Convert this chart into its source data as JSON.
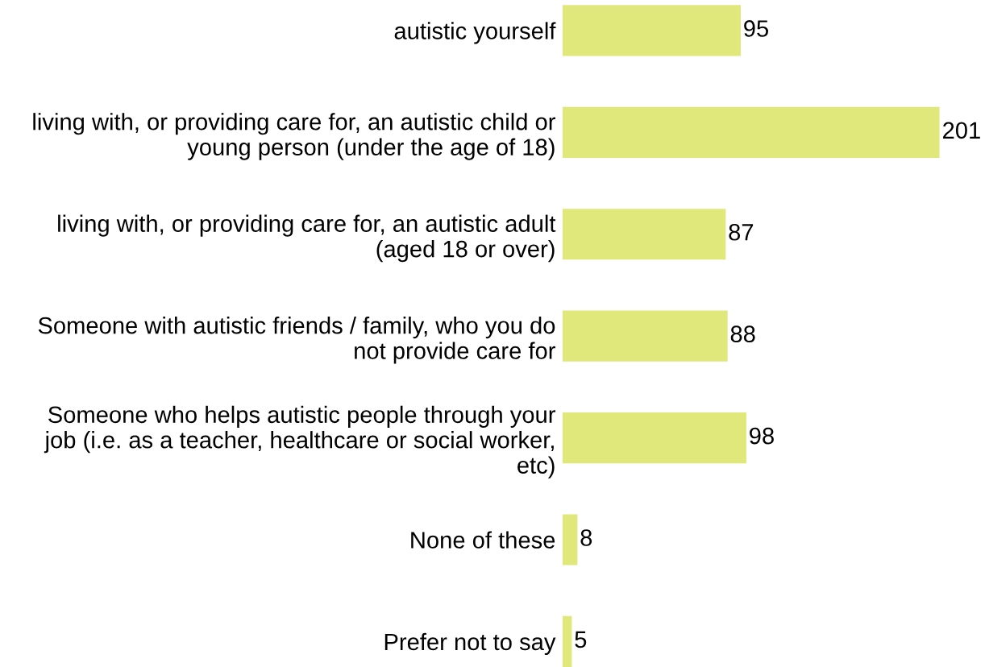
{
  "chart_data": {
    "type": "bar",
    "orientation": "horizontal",
    "data_labels": true,
    "color": "#e0e87c",
    "categories": [
      "autistic yourself",
      "living with, or providing care for, an autistic child or\nyoung person (under the age of 18)",
      "living with, or providing care for, an autistic adult\n(aged 18 or over)",
      "Someone with autistic friends / family, who you do\nnot provide care for",
      "Someone who helps autistic people through your\njob (i.e. as a teacher, healthcare or social worker,\netc)",
      "None of these",
      "Prefer not to say"
    ],
    "values": [
      95,
      201,
      87,
      88,
      98,
      8,
      5
    ],
    "grid": false,
    "legend": false
  }
}
